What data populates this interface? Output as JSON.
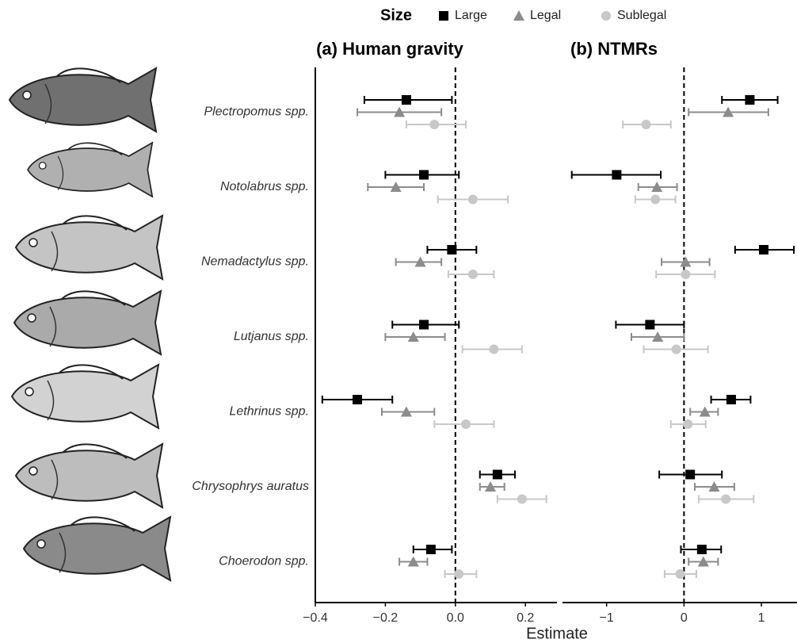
{
  "chart_data": [
    {
      "type": "errorbar",
      "title": "(a) Human gravity",
      "xlabel": "Estimate",
      "legend_title": "Size",
      "categories": [
        "Plectropomus spp.",
        "Notolabrus spp.",
        "Nemadactylus spp.",
        "Lutjanus spp.",
        "Lethrinus spp.",
        "Chrysophrys auratus",
        "Choerodon spp."
      ],
      "xlim": [
        -0.4,
        0.29
      ],
      "xticks": [
        {
          "value": -0.4,
          "label": "−0.4"
        },
        {
          "value": -0.2,
          "label": "−0.2"
        },
        {
          "value": 0,
          "label": "0.0"
        },
        {
          "value": 0.2,
          "label": "0.2"
        }
      ],
      "vline": 0,
      "series": [
        {
          "name": "Large",
          "marker": "square",
          "color": "#000000",
          "values": [
            -0.14,
            -0.09,
            -0.01,
            -0.09,
            -0.28,
            0.12,
            -0.07
          ],
          "lower": [
            -0.26,
            -0.2,
            -0.08,
            -0.18,
            -0.38,
            0.07,
            -0.12
          ],
          "upper": [
            -0.01,
            0.01,
            0.06,
            0.01,
            -0.18,
            0.17,
            -0.01
          ]
        },
        {
          "name": "Legal",
          "marker": "triangle",
          "color": "#8c8c8c",
          "values": [
            -0.16,
            -0.17,
            -0.1,
            -0.12,
            -0.14,
            0.1,
            -0.12
          ],
          "lower": [
            -0.28,
            -0.25,
            -0.17,
            -0.2,
            -0.21,
            0.07,
            -0.16
          ],
          "upper": [
            -0.04,
            -0.09,
            -0.04,
            -0.03,
            -0.06,
            0.14,
            -0.08
          ]
        },
        {
          "name": "Sublegal",
          "marker": "circle",
          "color": "#c8c8c8",
          "values": [
            -0.06,
            0.05,
            0.05,
            0.11,
            0.03,
            0.19,
            0.01
          ],
          "lower": [
            -0.14,
            -0.05,
            -0.02,
            0.02,
            -0.06,
            0.12,
            -0.03
          ],
          "upper": [
            0.03,
            0.15,
            0.11,
            0.19,
            0.11,
            0.26,
            0.06
          ]
        }
      ]
    },
    {
      "type": "errorbar",
      "title": "(b) NTMRs",
      "xlim": [
        -1.57,
        1.46
      ],
      "xticks": [
        {
          "value": -1,
          "label": "−1"
        },
        0,
        1
      ],
      "vline": 0,
      "series": [
        {
          "marker": "square",
          "color": "#000000",
          "values": [
            0.85,
            -0.87,
            1.03,
            -0.44,
            0.61,
            0.08,
            0.23
          ],
          "lower": [
            0.49,
            -1.45,
            0.66,
            -0.88,
            0.35,
            -0.32,
            -0.04
          ],
          "upper": [
            1.21,
            -0.3,
            1.42,
            0,
            0.86,
            0.49,
            0.48
          ]
        },
        {
          "marker": "triangle",
          "color": "#8c8c8c",
          "values": [
            0.57,
            -0.35,
            0.02,
            -0.34,
            0.27,
            0.39,
            0.25
          ],
          "lower": [
            0.06,
            -0.59,
            -0.29,
            -0.68,
            0.08,
            0.14,
            0.06
          ],
          "upper": [
            1.09,
            -0.09,
            0.33,
            0,
            0.44,
            0.65,
            0.44
          ]
        },
        {
          "marker": "circle",
          "color": "#c8c8c8",
          "values": [
            -0.49,
            -0.37,
            0.02,
            -0.1,
            0.05,
            0.54,
            -0.05
          ],
          "lower": [
            -0.79,
            -0.63,
            -0.36,
            -0.52,
            -0.17,
            0.19,
            -0.25
          ],
          "upper": [
            -0.17,
            -0.11,
            0.4,
            0.31,
            0.28,
            0.9,
            0.16
          ]
        }
      ]
    }
  ]
}
